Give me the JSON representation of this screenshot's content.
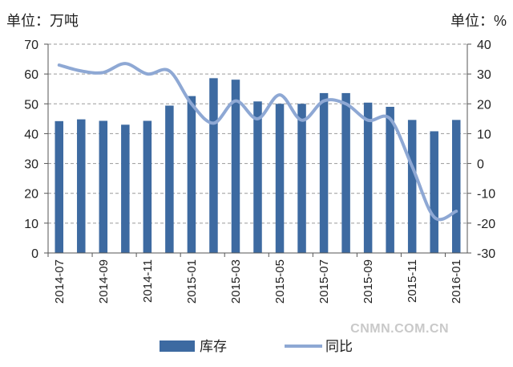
{
  "chart_data": {
    "type": "bar",
    "units": {
      "left": "单位：万吨",
      "right": "单位：%"
    },
    "categories": [
      "2014-07",
      "2014-08",
      "2014-09",
      "2014-10",
      "2014-11",
      "2014-12",
      "2015-01",
      "2015-02",
      "2015-03",
      "2015-04",
      "2015-05",
      "2015-06",
      "2015-07",
      "2015-08",
      "2015-09",
      "2015-10",
      "2015-11",
      "2015-12",
      "2016-01"
    ],
    "x_tick_labels": [
      "2014-07",
      "2014-09",
      "2014-11",
      "2015-01",
      "2015-03",
      "2015-05",
      "2015-07",
      "2015-09",
      "2015-11",
      "2016-01"
    ],
    "series": [
      {
        "name": "库存",
        "type": "bar",
        "axis": "left",
        "color": "#3d6aa1",
        "values": [
          44.2,
          44.8,
          44.3,
          43.0,
          44.3,
          49.4,
          52.6,
          58.6,
          58.1,
          50.8,
          50.0,
          50.0,
          53.6,
          53.6,
          50.4,
          49.0,
          44.6,
          40.8,
          44.6
        ]
      },
      {
        "name": "同比",
        "type": "line",
        "axis": "right",
        "color": "#8ea8d4",
        "values": [
          33.0,
          31.0,
          30.5,
          33.5,
          30.0,
          31.0,
          20.0,
          13.5,
          21.0,
          15.0,
          23.0,
          14.5,
          21.0,
          20.0,
          14.5,
          15.0,
          -1.0,
          -18.0,
          -16.0
        ]
      }
    ],
    "ylim_left": [
      0,
      70
    ],
    "yticks_left": [
      0,
      10,
      20,
      30,
      40,
      50,
      60,
      70
    ],
    "ylim_right": [
      -30,
      40
    ],
    "yticks_right": [
      -30,
      -20,
      -10,
      0,
      10,
      20,
      30,
      40
    ],
    "grid": true,
    "legend_position": "bottom"
  },
  "watermark": "CNMN.COM.CN"
}
